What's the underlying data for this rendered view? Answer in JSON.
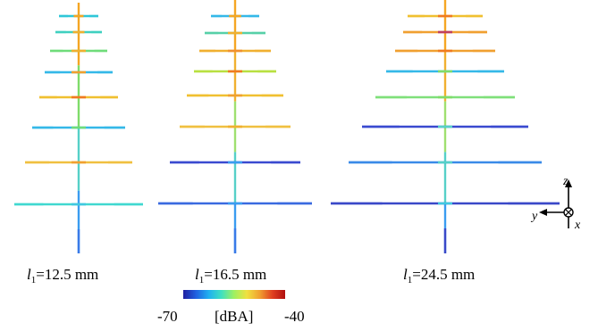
{
  "panels": [
    {
      "caption_var": "l",
      "caption_sub": "1",
      "caption_value": "=12.5 mm",
      "trunk_color": "#3fd0a8",
      "trunk_colors_top_to_bottom": [
        "#f5a623",
        "#7fdc6a",
        "#56d0c8",
        "#3a9cf0"
      ],
      "elements": [
        {
          "color": "#2fc7d8",
          "center": "#f5a623"
        },
        {
          "color": "#3fd0c0",
          "center": "#f0b030"
        },
        {
          "color": "#6fdc7a",
          "center": "#f0b030"
        },
        {
          "color": "#34b8e8",
          "center": "#f0a030"
        },
        {
          "color": "#f0c030",
          "center": "#f07a20"
        },
        {
          "color": "#34b8e8",
          "center": "#6fdc7a"
        },
        {
          "color": "#f0c040",
          "center": "#f0a030"
        },
        {
          "color": "#40d8d0",
          "center": "#40c8e0"
        }
      ]
    },
    {
      "caption_var": "l",
      "caption_sub": "1",
      "caption_value": "=16.5 mm",
      "elements": [
        {
          "color": "#34b8e8",
          "center": "#f5a623"
        },
        {
          "color": "#56d0a8",
          "center": "#f0b030"
        },
        {
          "color": "#f0b030",
          "center": "#f09030"
        },
        {
          "color": "#b8e040",
          "center": "#f07a20"
        },
        {
          "color": "#f0c030",
          "center": "#f0a030"
        },
        {
          "color": "#f0c040",
          "center": "#f0b030"
        },
        {
          "color": "#3a4ad0",
          "center": "#3a9cf0"
        },
        {
          "color": "#3a6ae0",
          "center": "#3a9cf0"
        }
      ]
    },
    {
      "caption_var": "l",
      "caption_sub": "1",
      "caption_value": "=24.5 mm",
      "elements": [
        {
          "color": "#f0c030",
          "center": "#f07a20"
        },
        {
          "color": "#f0a030",
          "center": "#c04060"
        },
        {
          "color": "#f0a030",
          "center": "#f07a20"
        },
        {
          "color": "#34b8e8",
          "center": "#7fdc6a"
        },
        {
          "color": "#7fe07a",
          "center": "#7fdc6a"
        },
        {
          "color": "#3a4ad0",
          "center": "#56d0c8"
        },
        {
          "color": "#3a8ae8",
          "center": "#56d0c8"
        },
        {
          "color": "#3a48c8",
          "center": "#40c8e0"
        }
      ]
    }
  ],
  "colorbar": {
    "min_label": "-70",
    "max_label": "-40",
    "unit_label": "[dBA]",
    "stops": [
      "#2020a0",
      "#2060e0",
      "#20b0f0",
      "#40e0c0",
      "#a0f060",
      "#f0e040",
      "#f0a030",
      "#e04020",
      "#b01010"
    ]
  },
  "axes": {
    "z_label": "z",
    "y_label": "y",
    "x_label": "x"
  }
}
